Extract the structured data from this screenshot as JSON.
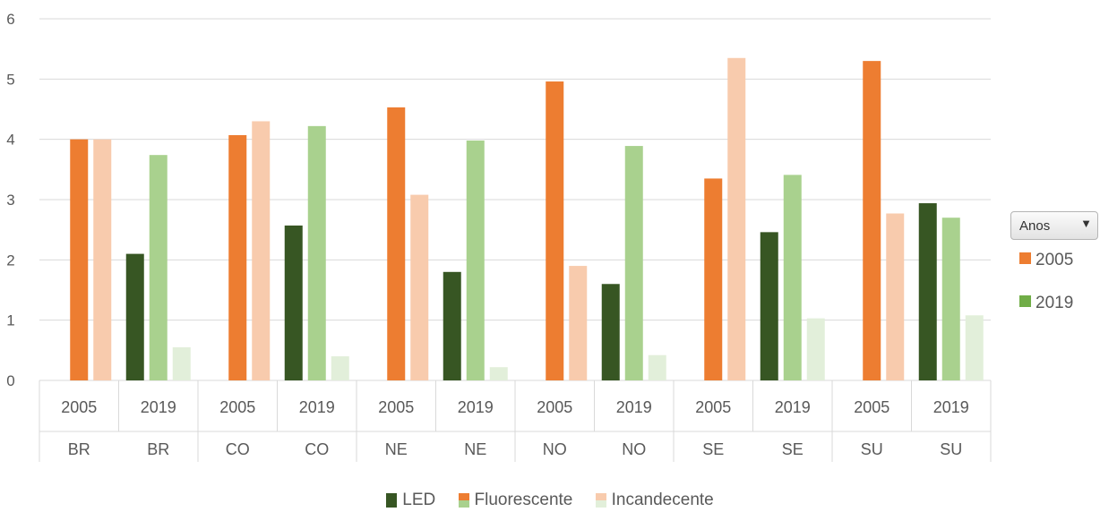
{
  "chart_data": {
    "type": "bar",
    "ylim": [
      0,
      6
    ],
    "yticks": [
      0,
      1,
      2,
      3,
      4,
      5,
      6
    ],
    "grid": true,
    "legend_position": "bottom",
    "categories": [
      {
        "year": "2005",
        "region": "BR"
      },
      {
        "year": "2019",
        "region": "BR"
      },
      {
        "year": "2005",
        "region": "CO"
      },
      {
        "year": "2019",
        "region": "CO"
      },
      {
        "year": "2005",
        "region": "NE"
      },
      {
        "year": "2019",
        "region": "NE"
      },
      {
        "year": "2005",
        "region": "NO"
      },
      {
        "year": "2019",
        "region": "NO"
      },
      {
        "year": "2005",
        "region": "SE"
      },
      {
        "year": "2019",
        "region": "SE"
      },
      {
        "year": "2005",
        "region": "SU"
      },
      {
        "year": "2019",
        "region": "SU"
      }
    ],
    "series": [
      {
        "name": "LED",
        "values": [
          0,
          2.1,
          0,
          2.57,
          0,
          1.8,
          0,
          1.6,
          0,
          2.46,
          0,
          2.94
        ]
      },
      {
        "name": "Fluorescente",
        "values": [
          4.0,
          3.74,
          4.07,
          4.22,
          4.53,
          3.98,
          4.96,
          3.89,
          3.35,
          3.41,
          5.3,
          2.7
        ]
      },
      {
        "name": "Incandecente",
        "values": [
          4.0,
          0.55,
          4.3,
          0.4,
          3.08,
          0.22,
          1.9,
          0.42,
          5.35,
          1.03,
          2.77,
          1.08
        ]
      }
    ],
    "colors": {
      "2005": {
        "LED": "#375623",
        "Fluorescente": "#ED7D31",
        "Incandecente": "#F8CBAD"
      },
      "2019": {
        "LED": "#375623",
        "Fluorescente": "#A9D18E",
        "Incandecente": "#E2EFDA"
      }
    }
  },
  "legend": [
    {
      "label": "LED",
      "top": "#375623",
      "bottom": "#375623"
    },
    {
      "label": "Fluorescente",
      "top": "#ED7D31",
      "bottom": "#A9D18E"
    },
    {
      "label": "Incandecente",
      "top": "#F8CBAD",
      "bottom": "#E2EFDA"
    }
  ],
  "filter": {
    "label": "Anos",
    "arrow": "▼",
    "items": [
      {
        "label": "2005",
        "color": "#ED7D31"
      },
      {
        "label": "2019",
        "color": "#70AD47"
      }
    ]
  }
}
